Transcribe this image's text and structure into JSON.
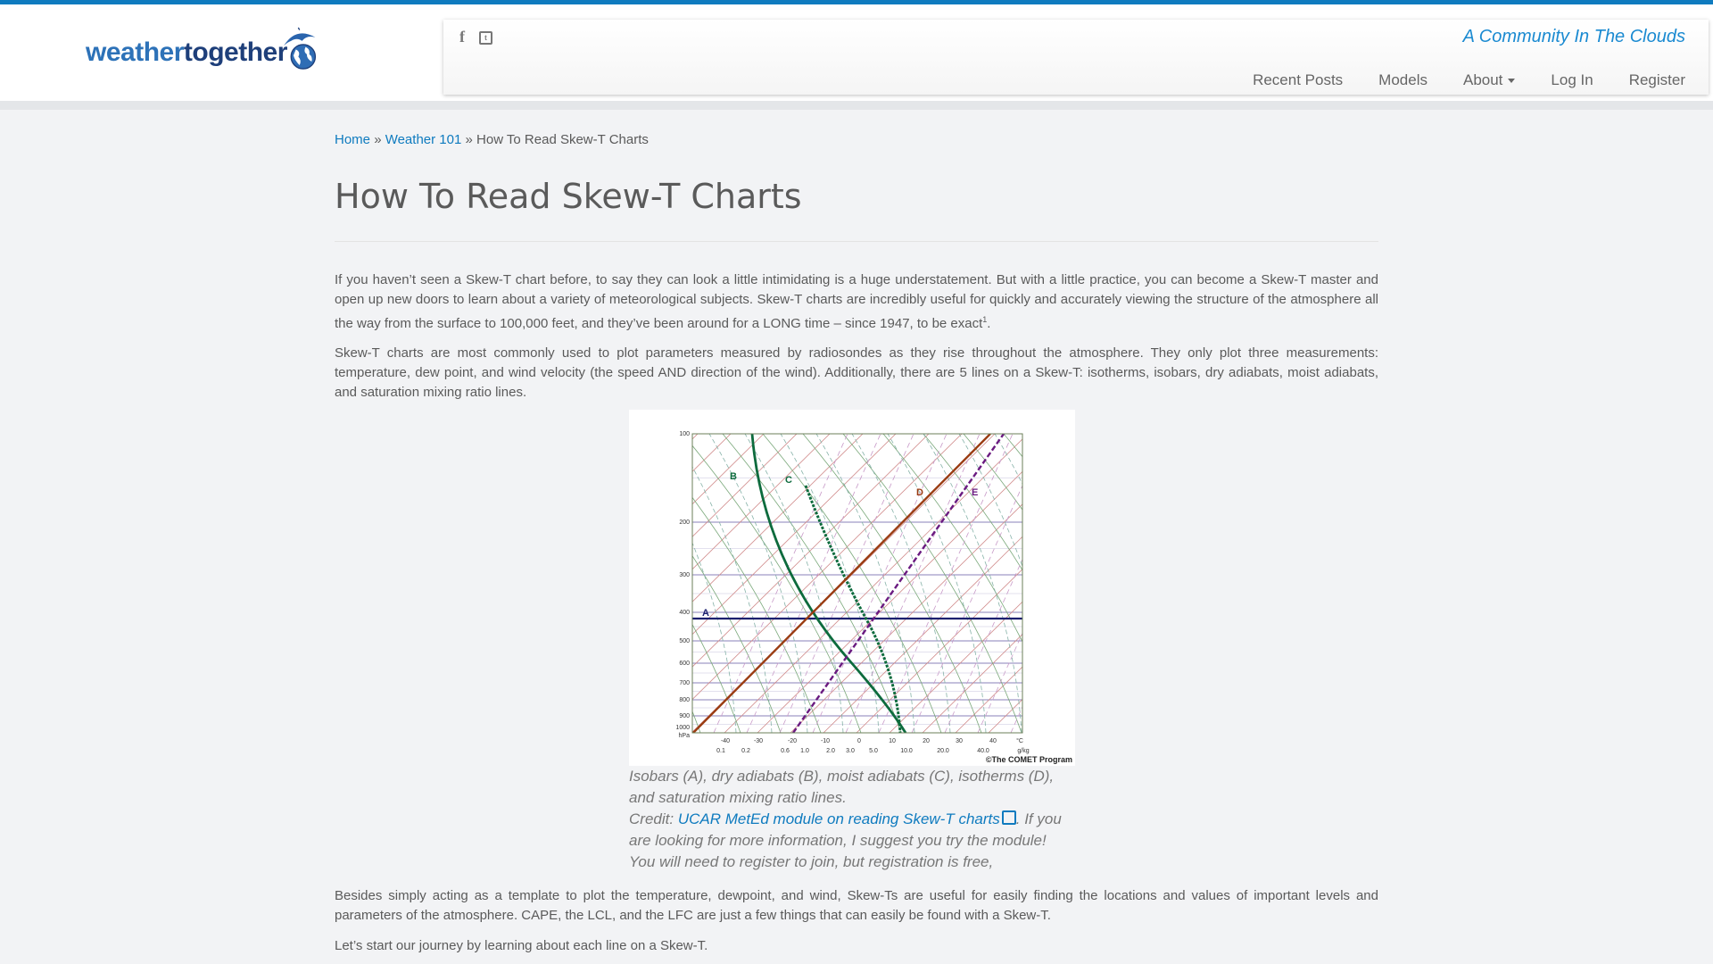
{
  "site": {
    "logo_word1": "weather",
    "logo_word2": "together",
    "tagline": "A Community In The Clouds"
  },
  "social": [
    {
      "icon": "facebook-icon",
      "glyph": "f"
    },
    {
      "icon": "twitter-icon",
      "glyph": "t"
    }
  ],
  "nav": {
    "items": [
      {
        "label": "Recent Posts"
      },
      {
        "label": "Models"
      },
      {
        "label": "About"
      },
      {
        "label": "Log In"
      },
      {
        "label": "Register"
      }
    ]
  },
  "breadcrumb": {
    "home": "Home",
    "sep": "»",
    "section": "Weather 101",
    "current": "How To Read Skew-T Charts"
  },
  "page": {
    "title": "How To Read Skew-T Charts",
    "p1": "If you haven’t seen a Skew-T chart before, to say they can look a little intimidating is a huge understatement. But with a little practice, you can become a Skew-T master and open up new doors to learn about a variety of meteorological subjects. Skew-T charts are incredibly useful for quickly and accurately viewing the structure of the atmosphere all the way from the surface to 100,000 feet, and they’ve been around for a LONG time – since 1947, to be exact",
    "p1_sup": "1",
    "p1_end": ".",
    "p2": "Skew-T charts are most commonly used to plot parameters measured by radiosondes as they rise throughout the atmosphere. They only plot three measurements: temperature, dew point, and wind velocity (the speed AND direction of the wind). Additionally, there are 5 lines on a Skew-T: isotherms, isobars, dry adiabats, moist adiabats, and saturation mixing ratio lines.",
    "p3": "Besides simply acting as a template to plot the temperature, dewpoint, and wind, Skew-Ts are useful for easily finding the locations and values of important levels and parameters of the atmosphere. CAPE, the LCL, and the LFC are just a few things that can easily be found with a Skew-T.",
    "p4": "Let’s start our journey by learning about each line on a Skew-T."
  },
  "figure": {
    "caption_line": "Isobars (A), dry adiabats (B), moist adiabats (C), isotherms (D), and saturation mixing ratio lines.",
    "credit_label": "Credit:",
    "credit_link": "UCAR MetEd module on reading Skew-T charts",
    "credit_rest": ". If you are looking for more information, I suggest you try the module! You will need to register to join, but registration is free,",
    "chart": {
      "pressure_labels": [
        "100",
        "200",
        "300",
        "400",
        "500",
        "600",
        "700",
        "800",
        "900",
        "1000",
        "hPa"
      ],
      "temp_labels": [
        "-40",
        "-30",
        "-20",
        "-10",
        "0",
        "10",
        "20",
        "30",
        "40",
        "°C"
      ],
      "mix_labels": [
        "0.1",
        "0.2",
        "0.6",
        "1.0",
        "2.0",
        "3.0",
        "5.0",
        "10.0",
        "20.0",
        "40.0",
        "g/kg"
      ],
      "line_labels": [
        "A",
        "B",
        "C",
        "D",
        "E"
      ],
      "copyright": "©The COMET Program"
    }
  }
}
